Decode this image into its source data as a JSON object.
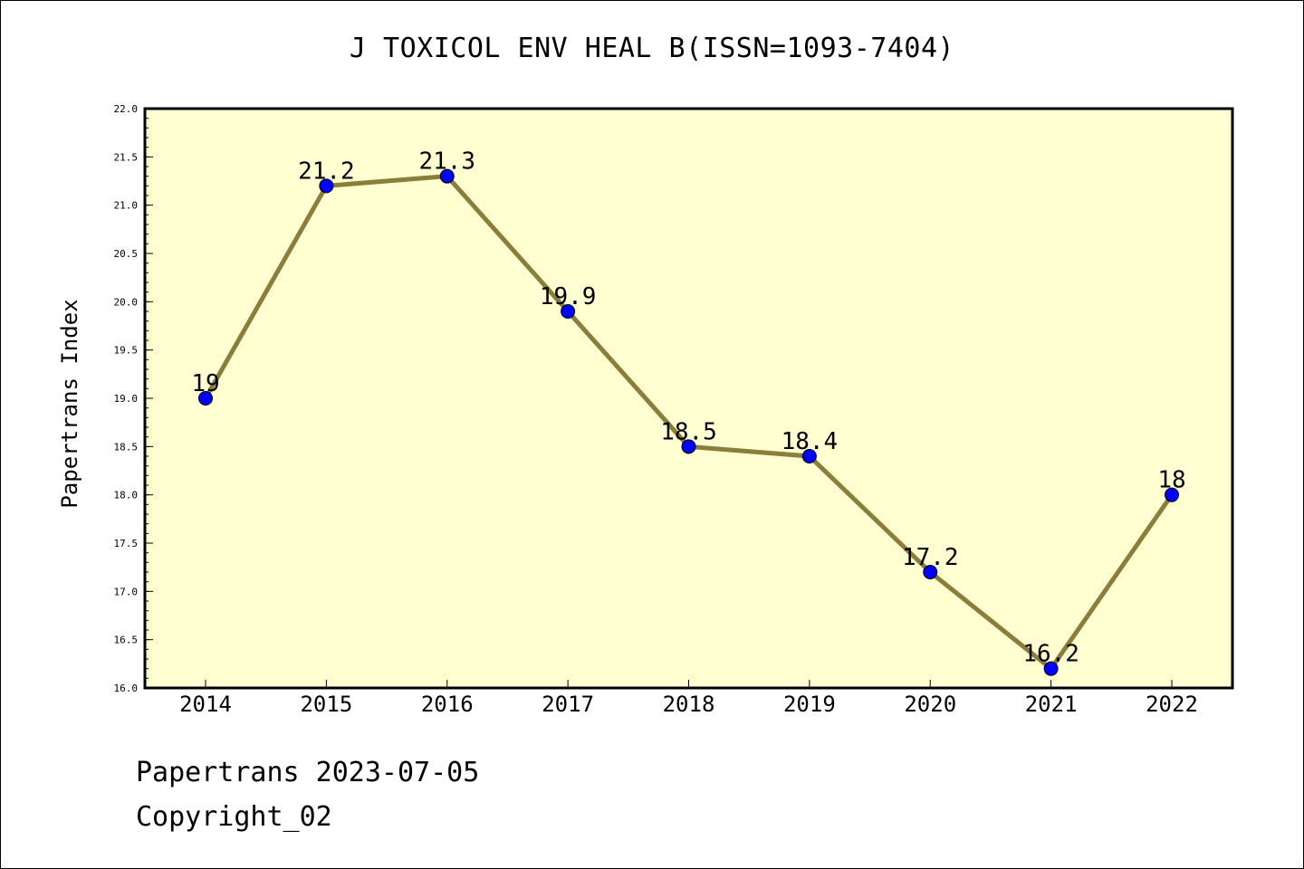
{
  "chart_data": {
    "type": "line",
    "title": "J TOXICOL ENV HEAL B(ISSN=1093-7404)",
    "xlabel": "",
    "ylabel": "Papertrans Index",
    "categories": [
      "2014",
      "2015",
      "2016",
      "2017",
      "2018",
      "2019",
      "2020",
      "2021",
      "2022"
    ],
    "values": [
      19,
      21.2,
      21.3,
      19.9,
      18.5,
      18.4,
      17.2,
      16.2,
      18
    ],
    "data_labels": [
      "19",
      "21.2",
      "21.3",
      "19.9",
      "18.5",
      "18.4",
      "17.2",
      "16.2",
      "18"
    ],
    "ylim": [
      16.0,
      22.0
    ],
    "yticks": [
      "16.0",
      "16.5",
      "17.0",
      "17.5",
      "18.0",
      "18.5",
      "19.0",
      "19.5",
      "20.0",
      "20.5",
      "21.0",
      "21.5",
      "22.0"
    ],
    "grid": false,
    "colors": {
      "plot_background": "#ffffd2",
      "line": "#8b7d3a",
      "marker": "#0000ff"
    }
  },
  "footer": {
    "date_line": "Papertrans 2023-07-05",
    "copyright_line": "Copyright_02"
  }
}
